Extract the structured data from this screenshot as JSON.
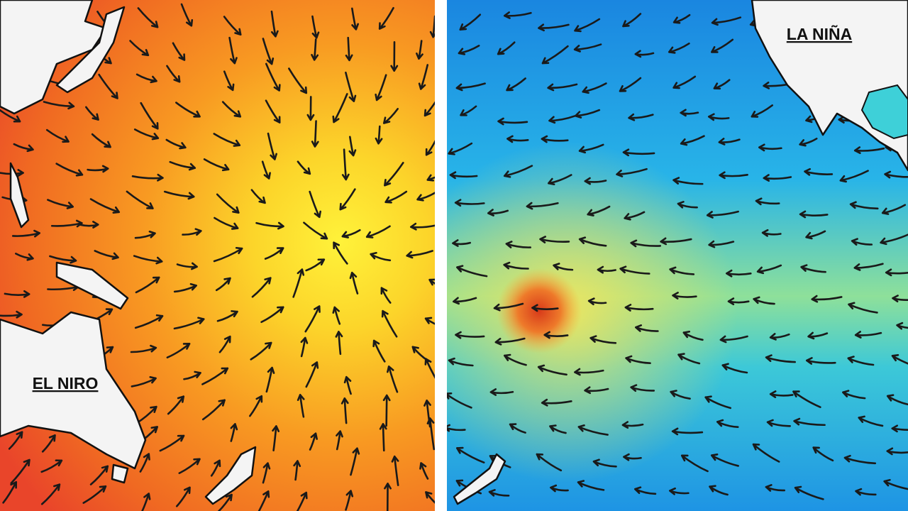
{
  "panels": [
    {
      "label": "EL NIRO"
    },
    {
      "label": "LA NIÑA"
    }
  ]
}
